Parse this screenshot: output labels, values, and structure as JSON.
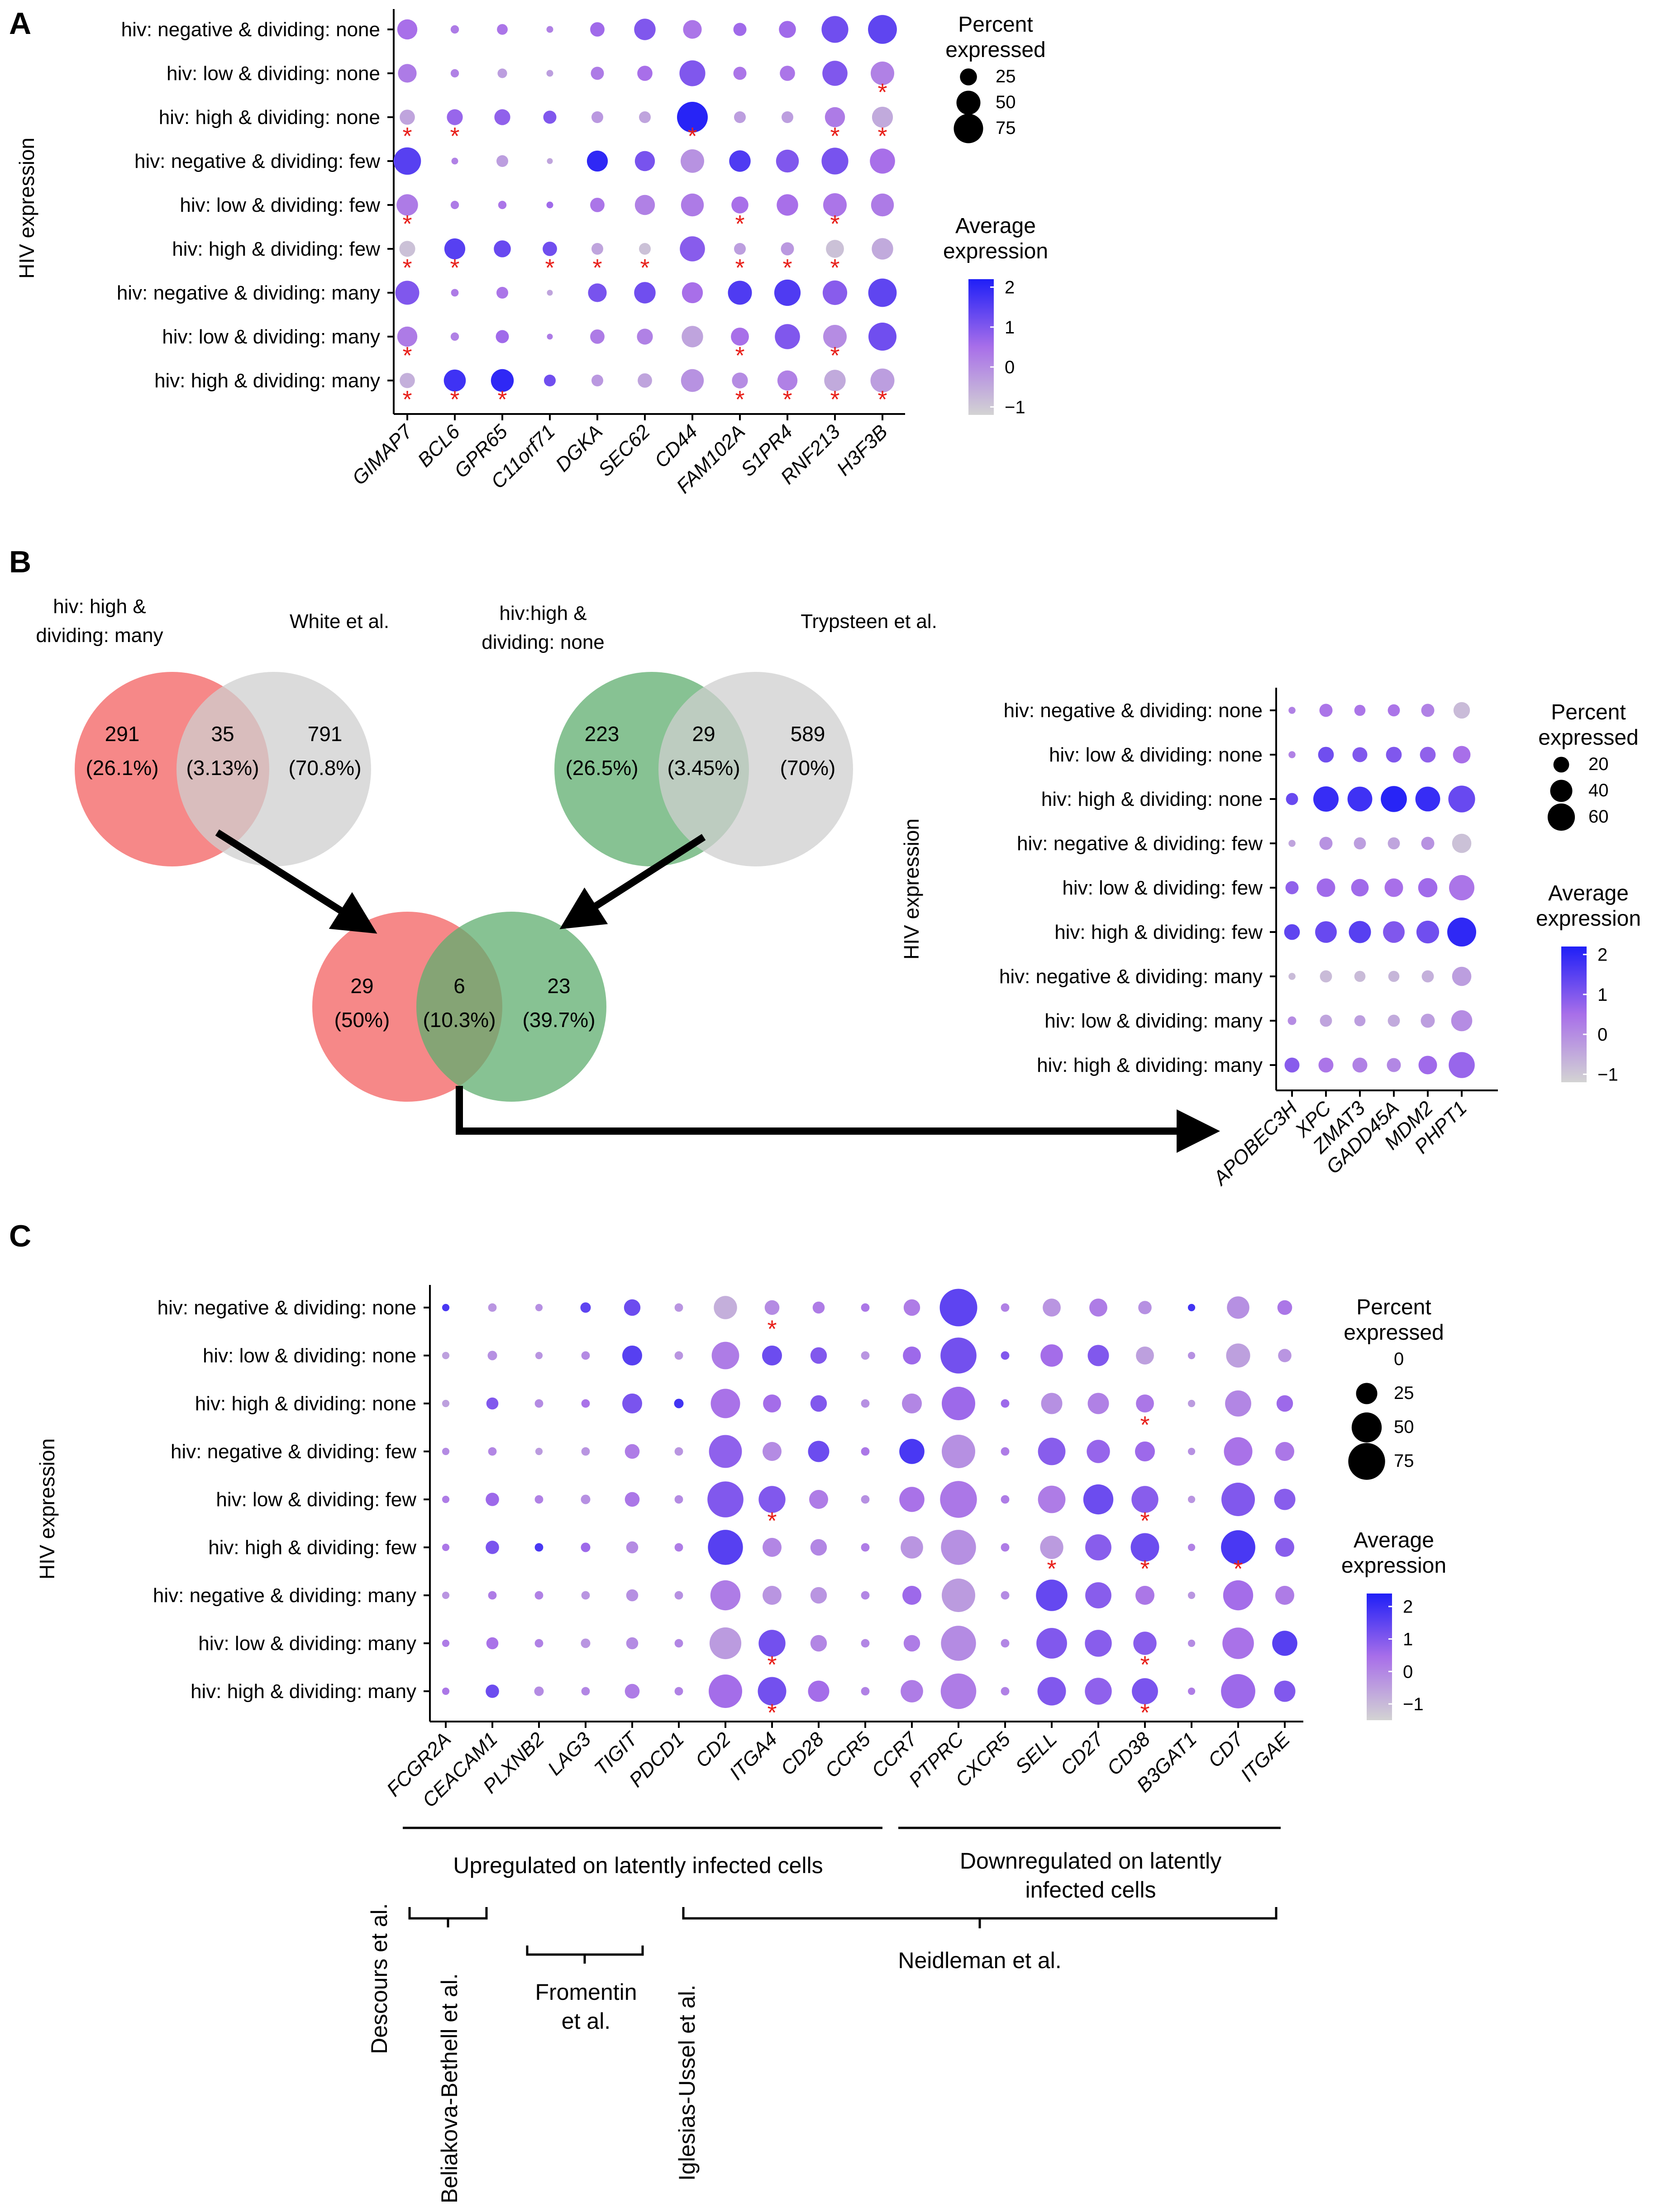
{
  "panels": {
    "a": "A",
    "b": "B",
    "c": "C"
  },
  "colors": {
    "low": "#d3d3d3",
    "mid": "#a86fe9",
    "high": "#1f1ff7",
    "star": "#e8201a",
    "salmon": "#f46a6a",
    "green": "#5fae6f",
    "grey": "#d3d3d3"
  },
  "row_labels": [
    "hiv: negative & dividing: none",
    "hiv: low & dividing: none",
    "hiv: high & dividing: none",
    "hiv: negative & dividing: few",
    "hiv: low & dividing: few",
    "hiv: high & dividing: few",
    "hiv: negative & dividing: many",
    "hiv: low & dividing: many",
    "hiv: high & dividing: many"
  ],
  "y_axis_title": "HIV expression",
  "star_symbol": "*",
  "chart_data": [
    {
      "id": "panel-a",
      "type": "dotplot",
      "ylabel": "HIV expression",
      "genes": [
        "GIMAP7",
        "BCL6",
        "GPR65",
        "C11orf71",
        "DGKA",
        "SEC62",
        "CD44",
        "FAM102A",
        "S1PR4",
        "RNF213",
        "H3F3B"
      ],
      "percent_expressed": [
        [
          35,
          6,
          10,
          4,
          18,
          40,
          30,
          15,
          25,
          62,
          72
        ],
        [
          30,
          6,
          8,
          4,
          15,
          20,
          58,
          15,
          20,
          55,
          48
        ],
        [
          20,
          22,
          22,
          15,
          12,
          12,
          82,
          12,
          12,
          35,
          38
        ],
        [
          65,
          4,
          12,
          3,
          38,
          35,
          48,
          40,
          45,
          62,
          55
        ],
        [
          40,
          6,
          6,
          4,
          18,
          35,
          45,
          25,
          40,
          48,
          45
        ],
        [
          22,
          38,
          25,
          18,
          12,
          12,
          55,
          12,
          15,
          28,
          40
        ],
        [
          50,
          5,
          12,
          3,
          30,
          40,
          38,
          50,
          60,
          52,
          70
        ],
        [
          35,
          6,
          15,
          3,
          18,
          22,
          40,
          28,
          55,
          48,
          68
        ],
        [
          20,
          42,
          45,
          12,
          12,
          18,
          45,
          22,
          35,
          40,
          50
        ]
      ],
      "average_expression": [
        [
          0.5,
          0.3,
          0.4,
          0.2,
          0.6,
          1.0,
          0.4,
          0.6,
          0.6,
          1.2,
          1.4
        ],
        [
          0.3,
          0.2,
          -0.3,
          -0.3,
          0.3,
          0.5,
          1.0,
          0.4,
          0.4,
          1.0,
          0.2
        ],
        [
          -0.4,
          0.7,
          0.8,
          1.0,
          -0.2,
          -0.4,
          2.1,
          -0.3,
          -0.3,
          0.3,
          -0.5
        ],
        [
          1.5,
          0.2,
          -0.3,
          -0.4,
          2.0,
          1.1,
          -0.1,
          1.6,
          1.0,
          1.1,
          0.5
        ],
        [
          0.3,
          0.3,
          0.4,
          0.6,
          0.4,
          0.2,
          0.3,
          0.5,
          0.5,
          0.4,
          0.3
        ],
        [
          -0.9,
          1.5,
          1.3,
          1.2,
          -0.4,
          -0.9,
          0.9,
          -0.3,
          -0.2,
          -0.9,
          -0.5
        ],
        [
          1.0,
          0.3,
          0.4,
          -0.4,
          1.1,
          1.2,
          0.5,
          1.6,
          1.6,
          0.9,
          1.4
        ],
        [
          0.3,
          0.2,
          0.6,
          0.3,
          0.3,
          0.2,
          -0.4,
          0.5,
          1.0,
          0.0,
          1.2
        ],
        [
          -0.6,
          1.8,
          2.0,
          1.2,
          -0.2,
          -0.4,
          -0.1,
          0.0,
          0.2,
          -0.5,
          -0.3
        ]
      ],
      "significant": [
        [
          2,
          9
        ],
        [
          1,
          10
        ],
        [
          2,
          0
        ],
        [
          2,
          1
        ],
        [
          2,
          6
        ],
        [
          2,
          10
        ],
        [
          4,
          0
        ],
        [
          4,
          7
        ],
        [
          4,
          9
        ],
        [
          5,
          0
        ],
        [
          5,
          1
        ],
        [
          5,
          3
        ],
        [
          5,
          4
        ],
        [
          5,
          5
        ],
        [
          5,
          7
        ],
        [
          5,
          8
        ],
        [
          5,
          9
        ],
        [
          7,
          0
        ],
        [
          7,
          7
        ],
        [
          7,
          9
        ],
        [
          8,
          0
        ],
        [
          8,
          1
        ],
        [
          8,
          2
        ],
        [
          8,
          7
        ],
        [
          8,
          8
        ],
        [
          8,
          9
        ],
        [
          8,
          10
        ]
      ],
      "legend": {
        "size_title": "Percent\nexpressed",
        "size_values": [
          "25",
          "50",
          "75"
        ],
        "color_title": "Average\nexpression",
        "color_ticks": [
          "2",
          "1",
          "0",
          "−1"
        ],
        "color_range": [
          -1.2,
          2.2
        ]
      }
    },
    {
      "id": "panel-b-dotplot",
      "type": "dotplot",
      "ylabel": "HIV expression",
      "genes": [
        "APOBEC3H",
        "XPC",
        "ZMAT3",
        "GADD45A",
        "MDM2",
        "PHPT1"
      ],
      "percent_expressed": [
        [
          4,
          14,
          10,
          12,
          14,
          22
        ],
        [
          4,
          20,
          18,
          20,
          20,
          25
        ],
        [
          12,
          52,
          50,
          55,
          50,
          58
        ],
        [
          4,
          14,
          12,
          12,
          14,
          30
        ],
        [
          14,
          28,
          25,
          28,
          30,
          52
        ],
        [
          20,
          38,
          40,
          38,
          42,
          68
        ],
        [
          4,
          12,
          10,
          10,
          12,
          30
        ],
        [
          6,
          12,
          10,
          12,
          16,
          36
        ],
        [
          18,
          18,
          18,
          16,
          28,
          55
        ]
      ],
      "average_expression": [
        [
          0.2,
          0.4,
          0.4,
          0.4,
          0.2,
          -0.8
        ],
        [
          0.2,
          1.2,
          1.0,
          1.0,
          0.8,
          0.5
        ],
        [
          1.3,
          1.9,
          1.8,
          2.1,
          1.9,
          1.3
        ],
        [
          -0.4,
          -0.1,
          -0.3,
          -0.4,
          -0.1,
          -0.9
        ],
        [
          0.8,
          0.6,
          0.6,
          0.5,
          0.6,
          0.4
        ],
        [
          1.4,
          1.3,
          1.5,
          1.0,
          1.2,
          2.0
        ],
        [
          -0.8,
          -0.8,
          -0.8,
          -0.7,
          -0.6,
          -0.3
        ],
        [
          0.0,
          -0.4,
          -0.3,
          -0.5,
          -0.3,
          0.0
        ],
        [
          0.9,
          0.4,
          0.2,
          0.1,
          0.6,
          0.7
        ]
      ],
      "significant": [],
      "legend": {
        "size_title": "Percent\nexpressed",
        "size_values": [
          "20",
          "40",
          "60"
        ],
        "color_title": "Average\nexpression",
        "color_ticks": [
          "2",
          "1",
          "0",
          "−1"
        ],
        "color_range": [
          -1.2,
          2.2
        ]
      }
    },
    {
      "id": "panel-c",
      "type": "dotplot",
      "ylabel": "HIV expression",
      "genes": [
        "FCGR2A",
        "CEACAM1",
        "PLXNB2",
        "LAG3",
        "TIGIT",
        "PDCD1",
        "CD2",
        "ITGA4",
        "CD28",
        "CCR5",
        "CCR7",
        "PTPRC",
        "CXCR5",
        "SELL",
        "CD27",
        "CD38",
        "B3GAT1",
        "CD7",
        "ITGAE"
      ],
      "percent_expressed": [
        [
          3,
          4,
          3,
          6,
          15,
          4,
          30,
          12,
          8,
          4,
          15,
          78,
          4,
          18,
          18,
          10,
          3,
          28,
          12
        ],
        [
          3,
          5,
          3,
          4,
          22,
          4,
          42,
          22,
          15,
          4,
          18,
          72,
          4,
          28,
          25,
          18,
          3,
          32,
          10
        ],
        [
          3,
          8,
          4,
          4,
          22,
          5,
          48,
          18,
          15,
          4,
          22,
          62,
          4,
          25,
          25,
          18,
          3,
          38,
          15
        ],
        [
          3,
          4,
          3,
          4,
          12,
          4,
          60,
          20,
          25,
          4,
          35,
          62,
          4,
          42,
          30,
          22,
          3,
          45,
          20
        ],
        [
          3,
          10,
          4,
          5,
          12,
          4,
          72,
          40,
          20,
          4,
          35,
          75,
          4,
          42,
          50,
          40,
          3,
          62,
          25
        ],
        [
          3,
          10,
          4,
          5,
          8,
          4,
          68,
          20,
          15,
          4,
          28,
          68,
          4,
          30,
          38,
          45,
          3,
          65,
          20
        ],
        [
          3,
          4,
          4,
          4,
          8,
          4,
          50,
          20,
          15,
          4,
          20,
          62,
          4,
          55,
          38,
          20,
          3,
          50,
          20
        ],
        [
          3,
          8,
          4,
          5,
          8,
          4,
          56,
          40,
          15,
          4,
          15,
          68,
          4,
          52,
          40,
          30,
          3,
          55,
          35
        ],
        [
          3,
          10,
          5,
          4,
          12,
          4,
          62,
          45,
          25,
          4,
          28,
          70,
          4,
          45,
          40,
          38,
          3,
          65,
          25
        ]
      ],
      "average_expression": [
        [
          1.8,
          -0.3,
          -0.2,
          1.5,
          1.3,
          -0.3,
          -0.8,
          -0.1,
          0.2,
          0.3,
          0.2,
          1.5,
          0.1,
          -0.3,
          0.2,
          -0.2,
          1.9,
          -0.2,
          0.3
        ],
        [
          -0.5,
          -0.2,
          -0.3,
          -0.1,
          1.6,
          -0.3,
          0.2,
          1.3,
          1.0,
          -0.3,
          0.6,
          1.2,
          1.0,
          0.5,
          1.0,
          -0.5,
          -0.2,
          -0.5,
          -0.3
        ],
        [
          -0.5,
          1.0,
          -0.1,
          0.4,
          1.1,
          1.9,
          0.4,
          0.5,
          1.0,
          -0.2,
          0.0,
          0.6,
          0.6,
          -0.2,
          0.1,
          0.3,
          -0.4,
          0.0,
          0.6
        ],
        [
          -0.1,
          0.0,
          -0.4,
          -0.3,
          0.2,
          -0.3,
          0.8,
          -0.1,
          1.3,
          0.3,
          1.8,
          -0.2,
          0.2,
          0.9,
          0.7,
          0.6,
          -0.2,
          0.4,
          0.3
        ],
        [
          0.2,
          0.6,
          0.1,
          -0.2,
          0.3,
          -0.1,
          1.0,
          1.0,
          0.2,
          -0.2,
          0.4,
          0.3,
          0.2,
          0.2,
          1.3,
          0.9,
          -0.3,
          1.0,
          0.9
        ],
        [
          0.3,
          1.1,
          1.8,
          0.6,
          -0.1,
          0.2,
          1.6,
          0.0,
          0.0,
          0.2,
          -0.3,
          -0.2,
          0.2,
          -0.4,
          0.9,
          1.3,
          0.1,
          1.8,
          0.9
        ],
        [
          -0.3,
          0.2,
          0.1,
          -0.3,
          -0.2,
          -0.2,
          0.2,
          -0.3,
          -0.3,
          0.0,
          0.6,
          -0.4,
          -0.1,
          1.4,
          0.9,
          0.3,
          -0.3,
          0.5,
          0.2
        ],
        [
          0.2,
          0.4,
          0.1,
          -0.3,
          -0.1,
          0.0,
          -0.4,
          1.2,
          0.0,
          0.0,
          0.2,
          -0.1,
          0.0,
          1.0,
          0.9,
          0.9,
          -0.1,
          0.4,
          1.6
        ],
        [
          0.3,
          1.3,
          -0.1,
          0.0,
          0.2,
          0.1,
          0.5,
          1.2,
          0.5,
          0.1,
          0.2,
          0.2,
          0.1,
          1.0,
          0.8,
          1.1,
          0.2,
          0.6,
          1.0
        ]
      ],
      "significant": [
        [
          0,
          7
        ],
        [
          2,
          15
        ],
        [
          4,
          7
        ],
        [
          4,
          15
        ],
        [
          5,
          13
        ],
        [
          5,
          15
        ],
        [
          5,
          17
        ],
        [
          7,
          7
        ],
        [
          7,
          15
        ],
        [
          8,
          7
        ],
        [
          8,
          15
        ]
      ],
      "legend": {
        "size_title": "Percent\nexpressed",
        "size_values": [
          "0",
          "25",
          "50",
          "75"
        ],
        "color_title": "Average\nexpression",
        "color_ticks": [
          "2",
          "1",
          "0",
          "−1"
        ],
        "color_range": [
          -1.5,
          2.4
        ]
      },
      "annotations": {
        "up_label": "Upregulated on latently infected cells",
        "down_label": "Downregulated on latently\ninfected cells",
        "neidleman": "Neidleman et al.",
        "descours": "Descours et al.",
        "beliakova": "Beliakova-Bethell et al.",
        "fromentin": "Fromentin\net al.",
        "iglesias": "Iglesias-Ussel et al."
      }
    }
  ],
  "venn": {
    "left": {
      "label_a": "hiv: high &\ndividing: many",
      "label_b": "White et al.",
      "only_a": "291",
      "only_a_pct": "(26.1%)",
      "both": "35",
      "both_pct": "(3.13%)",
      "only_b": "791",
      "only_b_pct": "(70.8%)"
    },
    "right": {
      "label_a": "hiv:high &\ndividing: none",
      "label_b": "Trypsteen et al.",
      "only_a": "223",
      "only_a_pct": "(26.5%)",
      "both": "29",
      "both_pct": "(3.45%)",
      "only_b": "589",
      "only_b_pct": "(70%)"
    },
    "bottom": {
      "only_a": "29",
      "only_a_pct": "(50%)",
      "both": "6",
      "both_pct": "(10.3%)",
      "only_b": "23",
      "only_b_pct": "(39.7%)"
    }
  }
}
